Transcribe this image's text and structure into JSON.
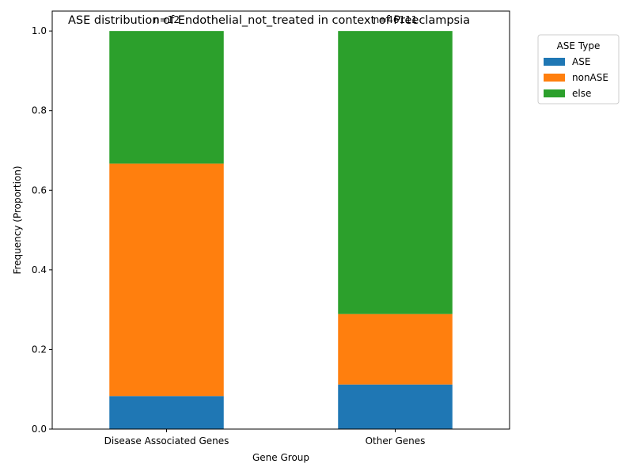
{
  "chart_data": {
    "type": "bar",
    "stacked": true,
    "title": "ASE distribution of Endothelial_not_treated in context of Preeclampsia",
    "xlabel": "Gene Group",
    "ylabel": "Frequency (Proportion)",
    "ylim": [
      0,
      1.05
    ],
    "yticks": [
      "0.0",
      "0.2",
      "0.4",
      "0.6",
      "0.8",
      "1.0"
    ],
    "categories": [
      "Disease Associated Genes",
      "Other Genes"
    ],
    "counts": [
      "n=12",
      "n=46111"
    ],
    "series": [
      {
        "name": "ASE",
        "color": "#1f77b4",
        "values": [
          0.083,
          0.112
        ]
      },
      {
        "name": "nonASE",
        "color": "#ff7f0e",
        "values": [
          0.584,
          0.177
        ]
      },
      {
        "name": "else",
        "color": "#2ca02c",
        "values": [
          0.333,
          0.711
        ]
      }
    ],
    "legend": {
      "title": "ASE Type",
      "placement": "outside-top-right"
    },
    "grid": false
  }
}
